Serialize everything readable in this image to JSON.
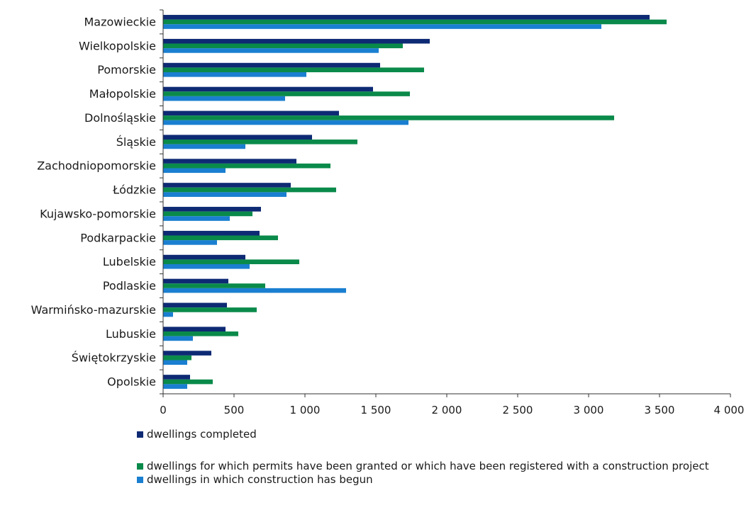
{
  "chart_data": {
    "type": "bar",
    "orientation": "horizontal",
    "categories": [
      "Mazowieckie",
      "Wielkopolskie",
      "Pomorskie",
      "Małopolskie",
      "Dolnośląskie",
      "Śląskie",
      "Zachodniopomorskie",
      "Łódzkie",
      "Kujawsko-pomorskie",
      "Podkarpackie",
      "Lubelskie",
      "Podlaskie",
      "Warmińsko-mazurskie",
      "Lubuskie",
      "Świętokrzyskie",
      "Opolskie"
    ],
    "series": [
      {
        "name": "dwellings completed",
        "color": "#0e2a74",
        "values": [
          3430,
          1880,
          1530,
          1480,
          1240,
          1050,
          940,
          900,
          690,
          680,
          580,
          460,
          450,
          440,
          340,
          190
        ]
      },
      {
        "name": "dwellings for which permits have been granted or which have been registered with a construction project",
        "color": "#0a8a4a",
        "values": [
          3550,
          1690,
          1840,
          1740,
          3180,
          1370,
          1180,
          1220,
          630,
          810,
          960,
          720,
          660,
          530,
          200,
          350
        ]
      },
      {
        "name": "dwellings in which construction has begun",
        "color": "#1a7fd0",
        "values": [
          3090,
          1520,
          1010,
          860,
          1730,
          580,
          440,
          870,
          470,
          380,
          610,
          1290,
          70,
          210,
          170,
          170
        ]
      }
    ],
    "xlim": [
      0,
      4000
    ],
    "xticks": [
      0,
      500,
      1000,
      1500,
      2000,
      2500,
      3000,
      3500,
      4000
    ],
    "xtick_labels": [
      "0",
      "500",
      "1 000",
      "1 500",
      "2 000",
      "2 500",
      "3 000",
      "3 500",
      "4 000"
    ],
    "title": "",
    "xlabel": "",
    "ylabel": "",
    "grid": false,
    "legend_position": "bottom"
  }
}
